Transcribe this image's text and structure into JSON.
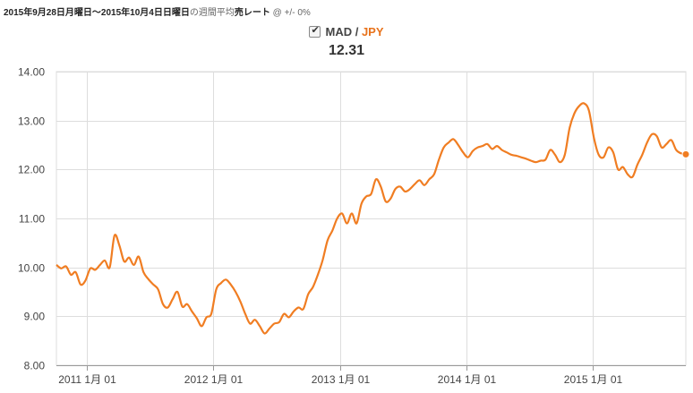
{
  "header": {
    "date_range": "2015年9月28日月曜日～2015年10月4日日曜日",
    "rate_note": "の週間平均",
    "rate_type": "売レート",
    "spread": "@ +/- 0%"
  },
  "legend": {
    "base": "MAD",
    "separator": " / ",
    "quote": "JPY",
    "current_value": "12.31",
    "checked": true
  },
  "colors": {
    "series": "#f07d22",
    "grid": "#dddddd",
    "axis": "#999999"
  },
  "chart_data": {
    "type": "line",
    "title": "",
    "xlabel": "",
    "ylabel": "",
    "ylim": [
      8.0,
      14.0
    ],
    "yticks": [
      "8.00",
      "9.00",
      "10.00",
      "11.00",
      "12.00",
      "13.00",
      "14.00"
    ],
    "xtick_labels": [
      "2011 1月 01",
      "2012 1月 01",
      "2013 1月 01",
      "2014 1月 01",
      "2015 1月 01"
    ],
    "grid": true,
    "legend_position": "top-center",
    "series": [
      {
        "name": "MAD / JPY",
        "points": [
          [
            "2010-10-04",
            10.05
          ],
          [
            "2010-10-18",
            9.98
          ],
          [
            "2010-11-01",
            10.02
          ],
          [
            "2010-11-15",
            9.85
          ],
          [
            "2010-11-29",
            9.9
          ],
          [
            "2010-12-13",
            9.65
          ],
          [
            "2010-12-27",
            9.73
          ],
          [
            "2011-01-10",
            9.98
          ],
          [
            "2011-01-24",
            9.95
          ],
          [
            "2011-02-07",
            10.05
          ],
          [
            "2011-02-21",
            10.14
          ],
          [
            "2011-03-07",
            10.0
          ],
          [
            "2011-03-21",
            10.65
          ],
          [
            "2011-04-04",
            10.45
          ],
          [
            "2011-04-18",
            10.12
          ],
          [
            "2011-05-02",
            10.2
          ],
          [
            "2011-05-16",
            10.05
          ],
          [
            "2011-05-30",
            10.22
          ],
          [
            "2011-06-13",
            9.9
          ],
          [
            "2011-06-27",
            9.76
          ],
          [
            "2011-07-11",
            9.65
          ],
          [
            "2011-07-25",
            9.55
          ],
          [
            "2011-08-08",
            9.25
          ],
          [
            "2011-08-22",
            9.18
          ],
          [
            "2011-09-05",
            9.35
          ],
          [
            "2011-09-19",
            9.5
          ],
          [
            "2011-10-03",
            9.2
          ],
          [
            "2011-10-17",
            9.25
          ],
          [
            "2011-10-31",
            9.1
          ],
          [
            "2011-11-14",
            8.96
          ],
          [
            "2011-11-28",
            8.8
          ],
          [
            "2011-12-12",
            8.98
          ],
          [
            "2011-12-26",
            9.05
          ],
          [
            "2012-01-09",
            9.55
          ],
          [
            "2012-01-23",
            9.68
          ],
          [
            "2012-02-06",
            9.75
          ],
          [
            "2012-02-20",
            9.65
          ],
          [
            "2012-03-05",
            9.5
          ],
          [
            "2012-03-19",
            9.3
          ],
          [
            "2012-04-02",
            9.05
          ],
          [
            "2012-04-16",
            8.85
          ],
          [
            "2012-04-30",
            8.93
          ],
          [
            "2012-05-14",
            8.8
          ],
          [
            "2012-05-28",
            8.65
          ],
          [
            "2012-06-11",
            8.75
          ],
          [
            "2012-06-25",
            8.85
          ],
          [
            "2012-07-09",
            8.88
          ],
          [
            "2012-07-23",
            9.05
          ],
          [
            "2012-08-06",
            8.98
          ],
          [
            "2012-08-20",
            9.1
          ],
          [
            "2012-09-03",
            9.18
          ],
          [
            "2012-09-17",
            9.15
          ],
          [
            "2012-10-01",
            9.45
          ],
          [
            "2012-10-15",
            9.6
          ],
          [
            "2012-10-29",
            9.85
          ],
          [
            "2012-11-12",
            10.15
          ],
          [
            "2012-11-26",
            10.55
          ],
          [
            "2012-12-10",
            10.75
          ],
          [
            "2012-12-24",
            11.0
          ],
          [
            "2013-01-07",
            11.1
          ],
          [
            "2013-01-21",
            10.9
          ],
          [
            "2013-02-04",
            11.1
          ],
          [
            "2013-02-18",
            10.9
          ],
          [
            "2013-03-04",
            11.3
          ],
          [
            "2013-03-18",
            11.45
          ],
          [
            "2013-04-01",
            11.5
          ],
          [
            "2013-04-15",
            11.8
          ],
          [
            "2013-04-29",
            11.65
          ],
          [
            "2013-05-13",
            11.35
          ],
          [
            "2013-05-27",
            11.4
          ],
          [
            "2013-06-10",
            11.6
          ],
          [
            "2013-06-24",
            11.65
          ],
          [
            "2013-07-08",
            11.55
          ],
          [
            "2013-07-22",
            11.6
          ],
          [
            "2013-08-05",
            11.7
          ],
          [
            "2013-08-19",
            11.78
          ],
          [
            "2013-09-02",
            11.68
          ],
          [
            "2013-09-16",
            11.8
          ],
          [
            "2013-09-30",
            11.9
          ],
          [
            "2013-10-14",
            12.2
          ],
          [
            "2013-10-28",
            12.45
          ],
          [
            "2013-11-11",
            12.55
          ],
          [
            "2013-11-25",
            12.62
          ],
          [
            "2013-12-09",
            12.5
          ],
          [
            "2013-12-23",
            12.35
          ],
          [
            "2014-01-06",
            12.25
          ],
          [
            "2014-01-20",
            12.38
          ],
          [
            "2014-02-03",
            12.45
          ],
          [
            "2014-02-17",
            12.48
          ],
          [
            "2014-03-03",
            12.52
          ],
          [
            "2014-03-17",
            12.42
          ],
          [
            "2014-03-31",
            12.48
          ],
          [
            "2014-04-14",
            12.4
          ],
          [
            "2014-04-28",
            12.35
          ],
          [
            "2014-05-12",
            12.3
          ],
          [
            "2014-05-26",
            12.28
          ],
          [
            "2014-06-09",
            12.25
          ],
          [
            "2014-06-23",
            12.22
          ],
          [
            "2014-07-07",
            12.18
          ],
          [
            "2014-07-21",
            12.15
          ],
          [
            "2014-08-04",
            12.18
          ],
          [
            "2014-08-18",
            12.2
          ],
          [
            "2014-09-01",
            12.4
          ],
          [
            "2014-09-15",
            12.3
          ],
          [
            "2014-09-29",
            12.15
          ],
          [
            "2014-10-13",
            12.3
          ],
          [
            "2014-10-27",
            12.85
          ],
          [
            "2014-11-10",
            13.15
          ],
          [
            "2014-11-24",
            13.3
          ],
          [
            "2014-12-08",
            13.35
          ],
          [
            "2014-12-22",
            13.2
          ],
          [
            "2015-01-05",
            12.65
          ],
          [
            "2015-01-19",
            12.3
          ],
          [
            "2015-02-02",
            12.25
          ],
          [
            "2015-02-16",
            12.45
          ],
          [
            "2015-03-02",
            12.35
          ],
          [
            "2015-03-16",
            12.0
          ],
          [
            "2015-03-30",
            12.05
          ],
          [
            "2015-04-13",
            11.9
          ],
          [
            "2015-04-27",
            11.85
          ],
          [
            "2015-05-11",
            12.1
          ],
          [
            "2015-05-25",
            12.3
          ],
          [
            "2015-06-08",
            12.55
          ],
          [
            "2015-06-22",
            12.72
          ],
          [
            "2015-07-06",
            12.68
          ],
          [
            "2015-07-20",
            12.45
          ],
          [
            "2015-08-03",
            12.52
          ],
          [
            "2015-08-17",
            12.6
          ],
          [
            "2015-08-31",
            12.4
          ],
          [
            "2015-09-14",
            12.33
          ],
          [
            "2015-09-28",
            12.31
          ]
        ]
      }
    ]
  }
}
